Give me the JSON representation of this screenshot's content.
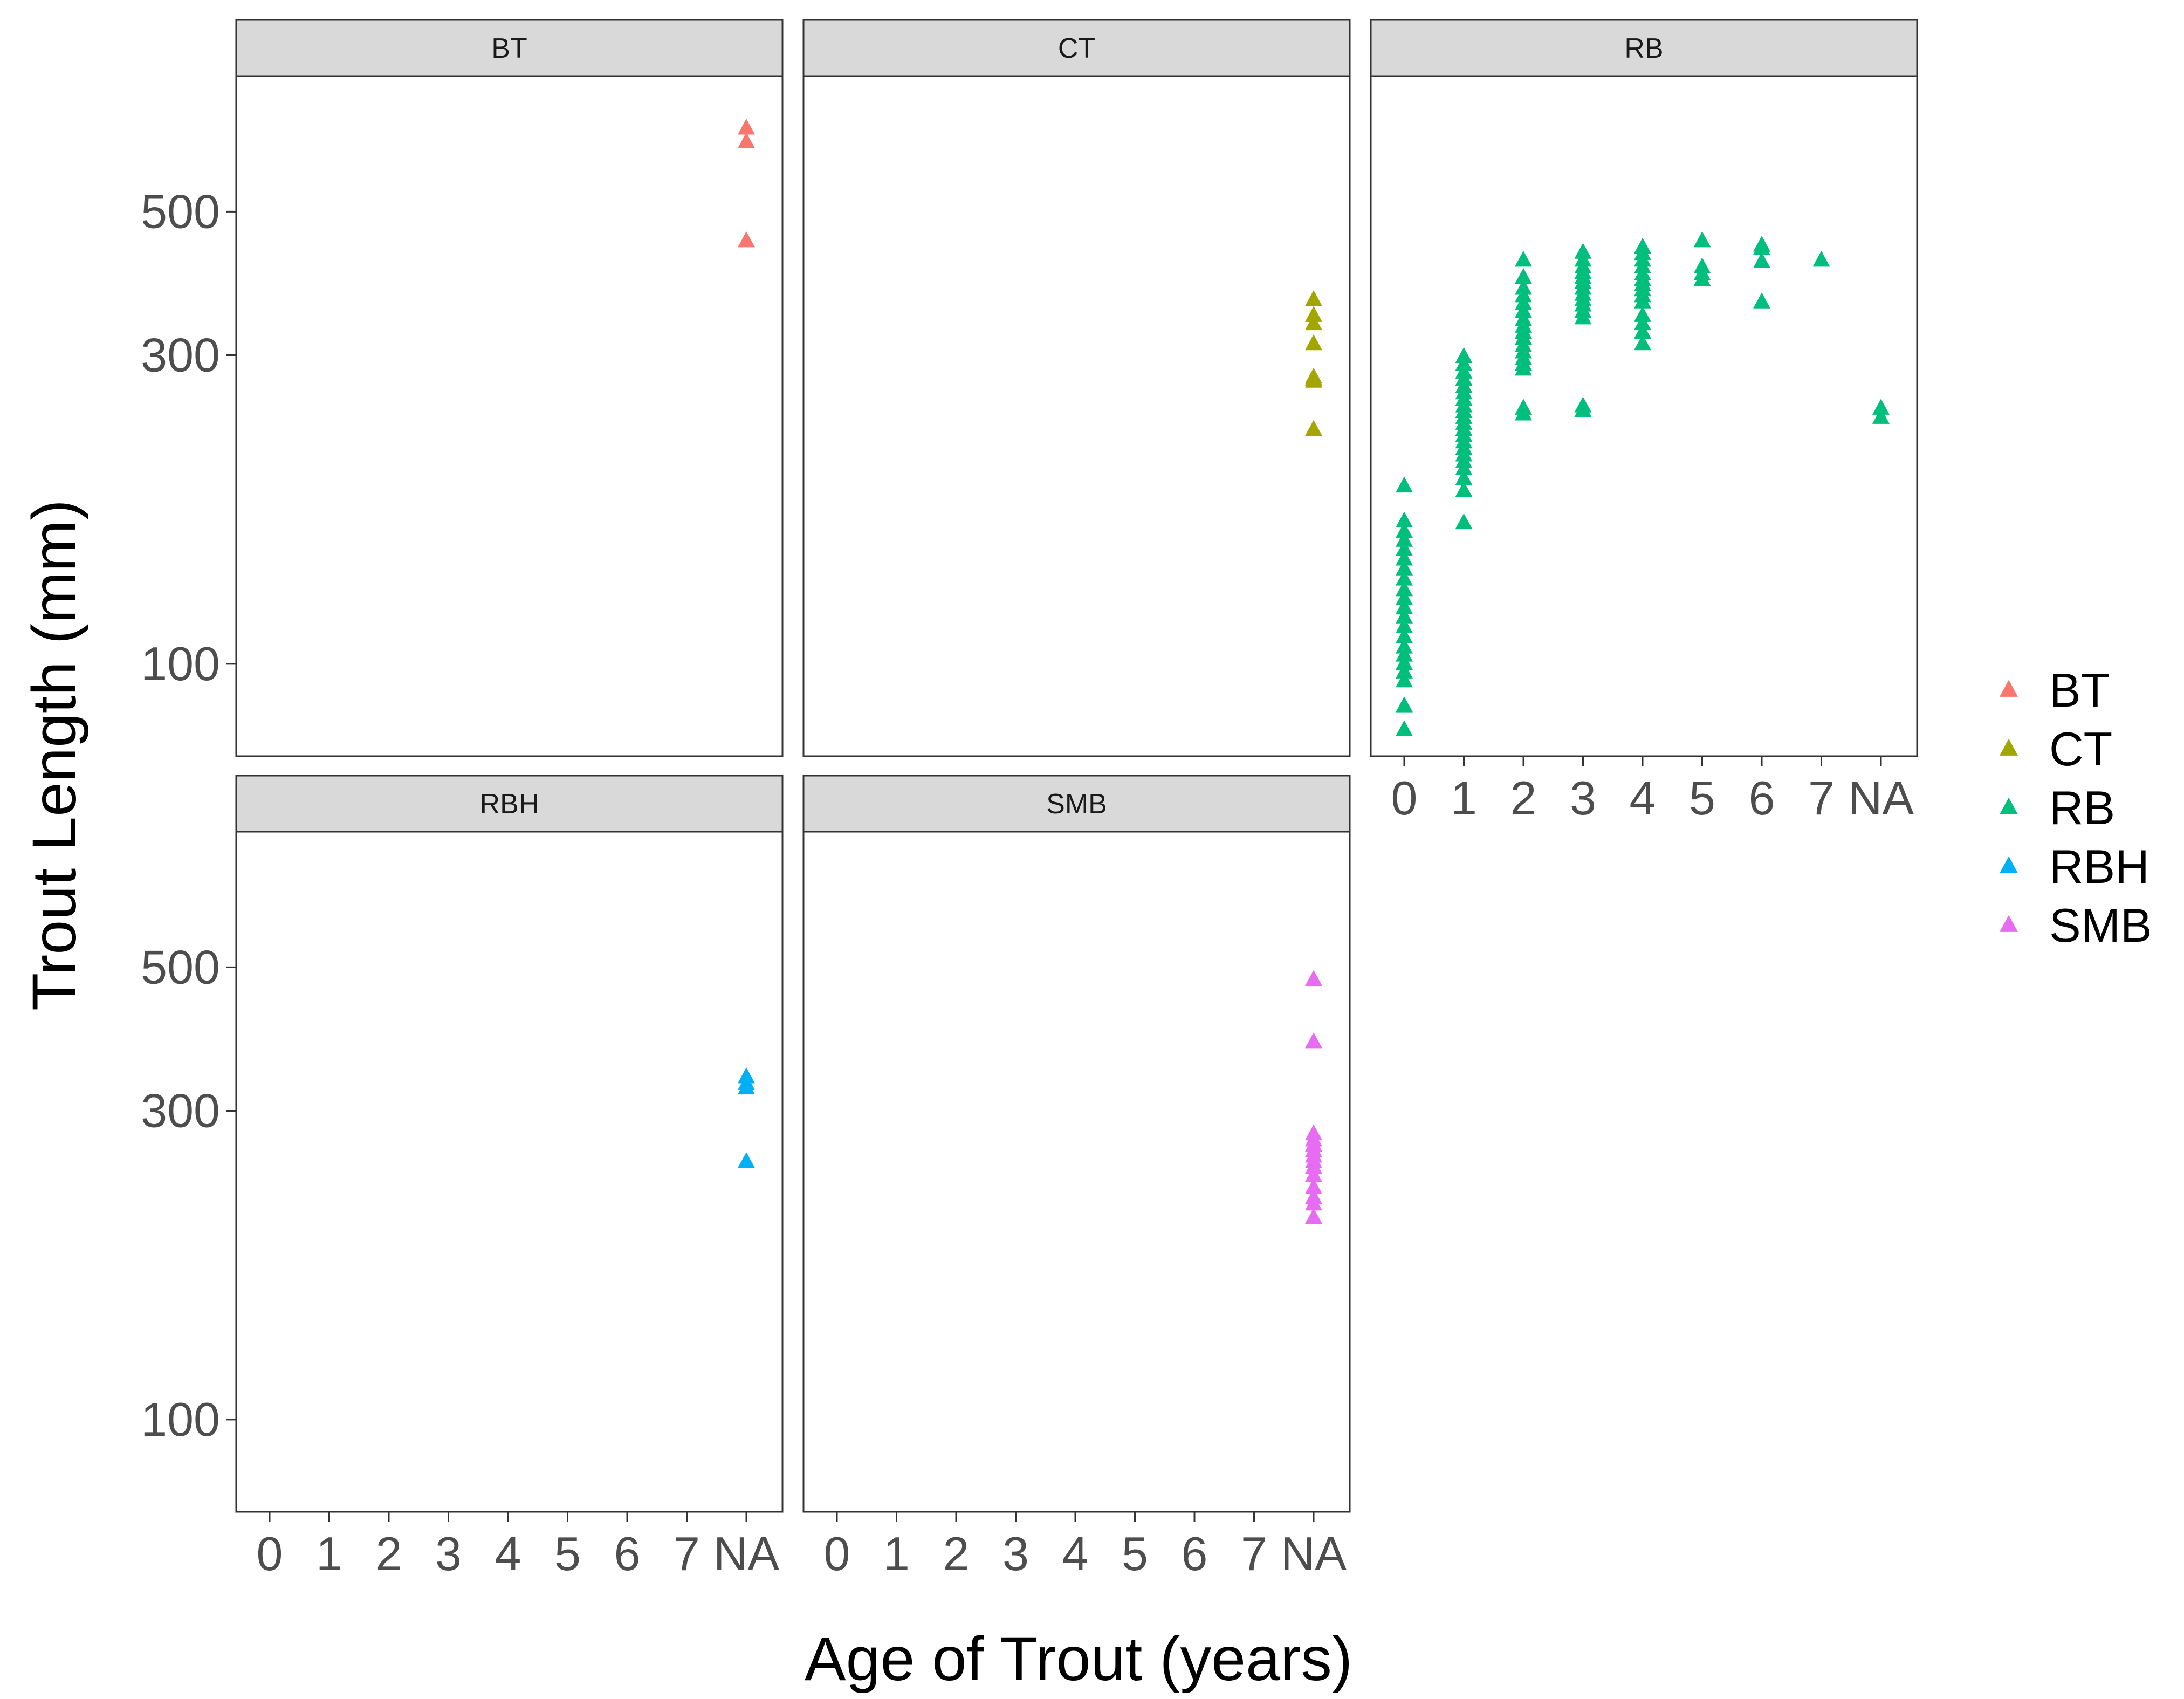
{
  "chart_data": {
    "type": "scatter",
    "facet_by": "species",
    "x_title": "Age of Trout (years)",
    "y_title": "Trout Length (mm)",
    "x_categories": [
      "0",
      "1",
      "2",
      "3",
      "4",
      "5",
      "6",
      "7",
      "NA"
    ],
    "y_scale": "log10",
    "y_range": [
      72,
      810
    ],
    "y_ticks": [
      100,
      300,
      500
    ],
    "marker": "triangle",
    "legend_position": "right",
    "colors": {
      "BT": "#F8766D",
      "CT": "#A3A500",
      "RB": "#00BF7D",
      "RBH": "#00B0F6",
      "SMB": "#E76BF3"
    },
    "legend": [
      "BT",
      "CT",
      "RB",
      "RBH",
      "SMB"
    ],
    "facets": [
      {
        "label": "BT",
        "points": [
          {
            "x": "NA",
            "y": 672
          },
          {
            "x": "NA",
            "y": 640
          },
          {
            "x": "NA",
            "y": 450
          }
        ]
      },
      {
        "label": "CT",
        "points": [
          {
            "x": "NA",
            "y": 365
          },
          {
            "x": "NA",
            "y": 345
          },
          {
            "x": "NA",
            "y": 335
          },
          {
            "x": "NA",
            "y": 312
          },
          {
            "x": "NA",
            "y": 277
          },
          {
            "x": "NA",
            "y": 273
          },
          {
            "x": "NA",
            "y": 275
          },
          {
            "x": "NA",
            "y": 230
          }
        ]
      },
      {
        "label": "RB",
        "points": [
          {
            "x": "0",
            "y": 188
          },
          {
            "x": "0",
            "y": 166
          },
          {
            "x": "0",
            "y": 160
          },
          {
            "x": "0",
            "y": 155
          },
          {
            "x": "0",
            "y": 150
          },
          {
            "x": "0",
            "y": 145
          },
          {
            "x": "0",
            "y": 140
          },
          {
            "x": "0",
            "y": 135
          },
          {
            "x": "0",
            "y": 130
          },
          {
            "x": "0",
            "y": 126
          },
          {
            "x": "0",
            "y": 122
          },
          {
            "x": "0",
            "y": 118
          },
          {
            "x": "0",
            "y": 114
          },
          {
            "x": "0",
            "y": 110
          },
          {
            "x": "0",
            "y": 106
          },
          {
            "x": "0",
            "y": 103
          },
          {
            "x": "0",
            "y": 100
          },
          {
            "x": "0",
            "y": 97
          },
          {
            "x": "0",
            "y": 94
          },
          {
            "x": "0",
            "y": 86
          },
          {
            "x": "0",
            "y": 79
          },
          {
            "x": "1",
            "y": 298
          },
          {
            "x": "1",
            "y": 290
          },
          {
            "x": "1",
            "y": 282
          },
          {
            "x": "1",
            "y": 275
          },
          {
            "x": "1",
            "y": 268
          },
          {
            "x": "1",
            "y": 262
          },
          {
            "x": "1",
            "y": 256
          },
          {
            "x": "1",
            "y": 250
          },
          {
            "x": "1",
            "y": 245
          },
          {
            "x": "1",
            "y": 240
          },
          {
            "x": "1",
            "y": 235
          },
          {
            "x": "1",
            "y": 230
          },
          {
            "x": "1",
            "y": 225
          },
          {
            "x": "1",
            "y": 220
          },
          {
            "x": "1",
            "y": 215
          },
          {
            "x": "1",
            "y": 210
          },
          {
            "x": "1",
            "y": 205
          },
          {
            "x": "1",
            "y": 200
          },
          {
            "x": "1",
            "y": 193
          },
          {
            "x": "1",
            "y": 185
          },
          {
            "x": "1",
            "y": 165
          },
          {
            "x": "2",
            "y": 420
          },
          {
            "x": "2",
            "y": 395
          },
          {
            "x": "2",
            "y": 380
          },
          {
            "x": "2",
            "y": 370
          },
          {
            "x": "2",
            "y": 360
          },
          {
            "x": "2",
            "y": 350
          },
          {
            "x": "2",
            "y": 340
          },
          {
            "x": "2",
            "y": 332
          },
          {
            "x": "2",
            "y": 325
          },
          {
            "x": "2",
            "y": 318
          },
          {
            "x": "2",
            "y": 310
          },
          {
            "x": "2",
            "y": 303
          },
          {
            "x": "2",
            "y": 296
          },
          {
            "x": "2",
            "y": 290
          },
          {
            "x": "2",
            "y": 285
          },
          {
            "x": "2",
            "y": 248
          },
          {
            "x": "2",
            "y": 243
          },
          {
            "x": "3",
            "y": 432
          },
          {
            "x": "3",
            "y": 420
          },
          {
            "x": "3",
            "y": 410
          },
          {
            "x": "3",
            "y": 402
          },
          {
            "x": "3",
            "y": 395
          },
          {
            "x": "3",
            "y": 388
          },
          {
            "x": "3",
            "y": 380
          },
          {
            "x": "3",
            "y": 372
          },
          {
            "x": "3",
            "y": 365
          },
          {
            "x": "3",
            "y": 358
          },
          {
            "x": "3",
            "y": 350
          },
          {
            "x": "3",
            "y": 342
          },
          {
            "x": "3",
            "y": 250
          },
          {
            "x": "3",
            "y": 246
          },
          {
            "x": "4",
            "y": 440
          },
          {
            "x": "4",
            "y": 430
          },
          {
            "x": "4",
            "y": 420
          },
          {
            "x": "4",
            "y": 410
          },
          {
            "x": "4",
            "y": 400
          },
          {
            "x": "4",
            "y": 392
          },
          {
            "x": "4",
            "y": 385
          },
          {
            "x": "4",
            "y": 378
          },
          {
            "x": "4",
            "y": 370
          },
          {
            "x": "4",
            "y": 362
          },
          {
            "x": "4",
            "y": 345
          },
          {
            "x": "4",
            "y": 335
          },
          {
            "x": "4",
            "y": 325
          },
          {
            "x": "4",
            "y": 312
          },
          {
            "x": "5",
            "y": 450
          },
          {
            "x": "5",
            "y": 410
          },
          {
            "x": "5",
            "y": 400
          },
          {
            "x": "5",
            "y": 392
          },
          {
            "x": "6",
            "y": 443
          },
          {
            "x": "6",
            "y": 438
          },
          {
            "x": "6",
            "y": 418
          },
          {
            "x": "6",
            "y": 362
          },
          {
            "x": "7",
            "y": 420
          },
          {
            "x": "NA",
            "y": 248
          },
          {
            "x": "NA",
            "y": 240
          }
        ]
      },
      {
        "label": "RBH",
        "points": [
          {
            "x": "NA",
            "y": 338
          },
          {
            "x": "NA",
            "y": 330
          },
          {
            "x": "NA",
            "y": 325
          },
          {
            "x": "NA",
            "y": 250
          }
        ]
      },
      {
        "label": "SMB",
        "points": [
          {
            "x": "NA",
            "y": 478
          },
          {
            "x": "NA",
            "y": 383
          },
          {
            "x": "NA",
            "y": 276
          },
          {
            "x": "NA",
            "y": 270
          },
          {
            "x": "NA",
            "y": 265
          },
          {
            "x": "NA",
            "y": 260
          },
          {
            "x": "NA",
            "y": 255
          },
          {
            "x": "NA",
            "y": 250
          },
          {
            "x": "NA",
            "y": 245
          },
          {
            "x": "NA",
            "y": 238
          },
          {
            "x": "NA",
            "y": 228
          },
          {
            "x": "NA",
            "y": 220
          },
          {
            "x": "NA",
            "y": 215
          },
          {
            "x": "NA",
            "y": 205
          }
        ]
      }
    ]
  }
}
